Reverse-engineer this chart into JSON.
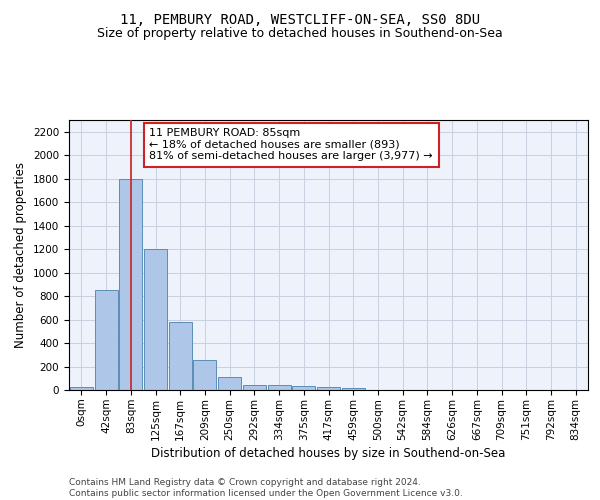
{
  "title1": "11, PEMBURY ROAD, WESTCLIFF-ON-SEA, SS0 8DU",
  "title2": "Size of property relative to detached houses in Southend-on-Sea",
  "xlabel": "Distribution of detached houses by size in Southend-on-Sea",
  "ylabel": "Number of detached properties",
  "bin_labels": [
    "0sqm",
    "42sqm",
    "83sqm",
    "125sqm",
    "167sqm",
    "209sqm",
    "250sqm",
    "292sqm",
    "334sqm",
    "375sqm",
    "417sqm",
    "459sqm",
    "500sqm",
    "542sqm",
    "584sqm",
    "626sqm",
    "667sqm",
    "709sqm",
    "751sqm",
    "792sqm",
    "834sqm"
  ],
  "bar_values": [
    25,
    850,
    1800,
    1200,
    580,
    255,
    115,
    45,
    45,
    30,
    25,
    15,
    0,
    0,
    0,
    0,
    0,
    0,
    0,
    0,
    0
  ],
  "bar_color": "#aec6e8",
  "bar_edge_color": "#5b8db8",
  "background_color": "#eef2fb",
  "grid_color": "#c8cfe0",
  "annotation_line1": "11 PEMBURY ROAD: 85sqm",
  "annotation_line2": "← 18% of detached houses are smaller (893)",
  "annotation_line3": "81% of semi-detached houses are larger (3,977) →",
  "annotation_box_color": "#ffffff",
  "annotation_box_edge_color": "#cc2222",
  "ylim": [
    0,
    2300
  ],
  "yticks": [
    0,
    200,
    400,
    600,
    800,
    1000,
    1200,
    1400,
    1600,
    1800,
    2000,
    2200
  ],
  "footer_text": "Contains HM Land Registry data © Crown copyright and database right 2024.\nContains public sector information licensed under the Open Government Licence v3.0.",
  "title1_fontsize": 10,
  "title2_fontsize": 9,
  "xlabel_fontsize": 8.5,
  "ylabel_fontsize": 8.5,
  "tick_fontsize": 7.5,
  "annotation_fontsize": 8,
  "footer_fontsize": 6.5
}
